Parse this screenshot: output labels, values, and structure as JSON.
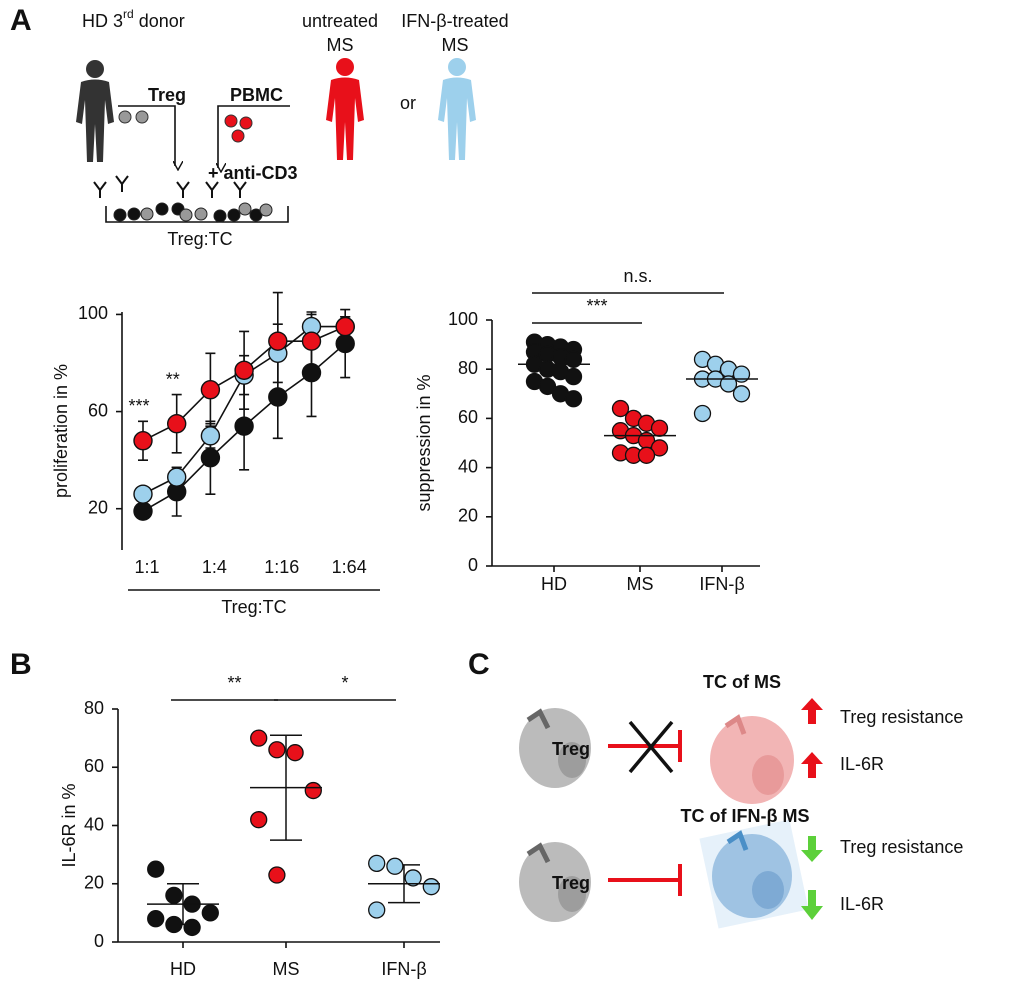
{
  "panels": {
    "a": "A",
    "b": "B",
    "c": "C"
  },
  "diagram_a": {
    "donor": {
      "text": "HD 3",
      "sup": "rd",
      "tail": " donor"
    },
    "untreated": [
      "untreated",
      "MS"
    ],
    "treated": [
      "IFN-β-treated",
      "MS"
    ],
    "or": "or",
    "treg": "Treg",
    "pbmc": "PBMC",
    "stim": "+ anti-CD3",
    "ratio": "Treg:TC"
  },
  "diagram_c": {
    "top": {
      "cell": "Treg",
      "target": "TC of MS",
      "effects": [
        "Treg resistance",
        "IL-6R"
      ]
    },
    "bottom": {
      "cell": "Treg",
      "target": "TC of IFN-β MS",
      "effects": [
        "Treg resistance",
        "IL-6R"
      ]
    }
  },
  "chart_data": [
    {
      "type": "line",
      "xlabel": "Treg:TC",
      "ylabel": "proliferation in %",
      "categories": [
        "1:1",
        null,
        "1:4",
        null,
        "1:16",
        null,
        "1:64"
      ],
      "ylim": [
        3,
        101
      ],
      "yticks": [
        20,
        60,
        100
      ],
      "annotations": [
        "***",
        "**"
      ],
      "series": [
        {
          "color": "#111111",
          "values": [
            19,
            27,
            41,
            54,
            66,
            76,
            88
          ],
          "errors": [
            3,
            10,
            15,
            18,
            17,
            18,
            14
          ]
        },
        {
          "color": "#9dd0ec",
          "values": [
            26,
            33,
            50,
            75,
            84,
            95,
            95
          ],
          "errors": [
            2,
            4,
            5,
            8,
            12,
            5,
            4
          ]
        },
        {
          "color": "#e8101a",
          "values": [
            48,
            55,
            69,
            77,
            89,
            89,
            95
          ],
          "errors": [
            8,
            12,
            15,
            16,
            20,
            12,
            4
          ]
        }
      ]
    },
    {
      "type": "dot",
      "ylabel": "suppression in %",
      "categories": [
        "HD",
        "MS",
        "IFN-β"
      ],
      "colors": [
        "#111111",
        "#e8101a",
        "#9dd0ec"
      ],
      "ylim": [
        0,
        100
      ],
      "yticks": [
        0,
        20,
        40,
        60,
        80,
        100
      ],
      "values": [
        [
          91,
          90,
          89,
          88,
          87,
          86,
          85,
          84,
          82,
          80,
          79,
          77,
          75,
          73,
          70,
          68
        ],
        [
          64,
          60,
          58,
          56,
          55,
          53,
          51,
          48,
          46,
          45,
          45
        ],
        [
          84,
          82,
          80,
          78,
          76,
          76,
          74,
          70,
          62
        ]
      ],
      "means": [
        82,
        53,
        76
      ],
      "comparisons": [
        {
          "label": "***",
          "between": [
            "HD",
            "MS"
          ]
        },
        {
          "label": "n.s.",
          "between": [
            "HD",
            "IFN-β"
          ]
        }
      ]
    },
    {
      "type": "dot",
      "ylabel": "IL-6R in %",
      "categories": [
        "HD",
        "MS",
        "IFN-β"
      ],
      "colors": [
        "#111111",
        "#e8101a",
        "#9dd0ec"
      ],
      "ylim": [
        0,
        80
      ],
      "yticks": [
        0,
        20,
        40,
        60,
        80
      ],
      "values": [
        [
          25,
          16,
          13,
          10,
          8,
          6,
          5
        ],
        [
          70,
          66,
          65,
          52,
          42,
          23
        ],
        [
          27,
          26,
          22,
          19,
          11
        ]
      ],
      "means": [
        13,
        53,
        20
      ],
      "sd": [
        7,
        18,
        6.5
      ],
      "comparisons": [
        {
          "label": "**",
          "between": [
            "HD",
            "MS"
          ]
        },
        {
          "label": "*",
          "between": [
            "MS",
            "IFN-β"
          ]
        }
      ]
    }
  ]
}
